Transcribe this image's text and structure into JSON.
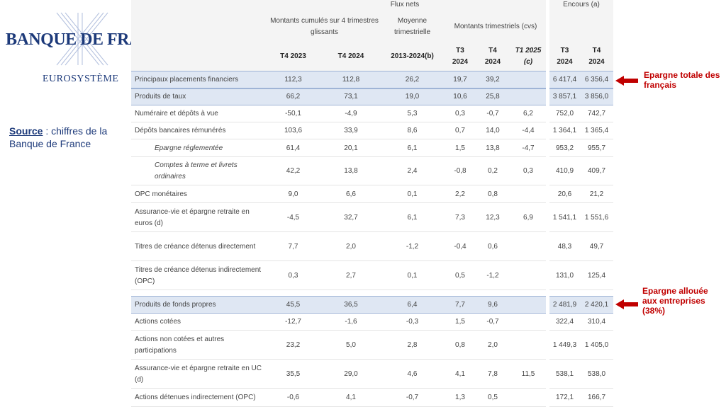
{
  "logo": {
    "name": "BANQUE DE FRANCE",
    "subtitle": "EUROSYSTÈME"
  },
  "source": {
    "label": "Source",
    "text": ": chiffres de la Banque de France"
  },
  "annotations": {
    "total": "Epargne totale des français",
    "entreprises": "Epargne allouée aux entreprises (38%)"
  },
  "table": {
    "header": {
      "flux_nets": "Flux nets",
      "encours": "Encours (a)",
      "groups": [
        "Montants cumulés sur 4 trimestres glissants",
        "Moyenne trimestrielle",
        "Montants trimestriels (cvs)"
      ],
      "columns": [
        [
          "T4 2023"
        ],
        [
          "T4 2024"
        ],
        [
          "2013-2024(b)"
        ],
        [
          "T3",
          "2024"
        ],
        [
          "T4",
          "2024"
        ],
        [
          "T1 2025",
          "(c)"
        ],
        [
          "T3",
          "2024"
        ],
        [
          "T4",
          "2024"
        ]
      ]
    },
    "rows": [
      {
        "label": "Principaux placements financiers",
        "cells": [
          "112,3",
          "112,8",
          "26,2",
          "19,7",
          "39,2",
          null,
          "6 417,4",
          "6 356,4"
        ]
      },
      {
        "label": "Produits de taux",
        "cells": [
          "66,2",
          "73,1",
          "19,0",
          "10,6",
          "25,8",
          null,
          "3 857,1",
          "3 856,0"
        ]
      },
      {
        "label": "Numéraire et dépôts à vue",
        "cells": [
          "-50,1",
          "-4,9",
          "5,3",
          "0,3",
          "-0,7",
          "6,2",
          "752,0",
          "742,7"
        ]
      },
      {
        "label": "Dépôts bancaires rémunérés",
        "cells": [
          "103,6",
          "33,9",
          "8,6",
          "0,7",
          "14,0",
          "-4,4",
          "1 364,1",
          "1 365,4"
        ]
      },
      {
        "label": "Epargne réglementée",
        "cells": [
          "61,4",
          "20,1",
          "6,1",
          "1,5",
          "13,8",
          "-4,7",
          "953,2",
          "955,7"
        ]
      },
      {
        "label": "Comptes à terme et livrets ordinaires",
        "cells": [
          "42,2",
          "13,8",
          "2,4",
          "-0,8",
          "0,2",
          "0,3",
          "410,9",
          "409,7"
        ]
      },
      {
        "label": "OPC monétaires",
        "cells": [
          "9,0",
          "6,6",
          "0,1",
          "2,2",
          "0,8",
          null,
          "20,6",
          "21,2"
        ]
      },
      {
        "label": "Assurance-vie et épargne retraite en euros (d)",
        "cells": [
          "-4,5",
          "32,7",
          "6,1",
          "7,3",
          "12,3",
          "6,9",
          "1 541,1",
          "1 551,6"
        ]
      },
      {
        "label": "Titres de créance détenus directement",
        "cells": [
          "7,7",
          "2,0",
          "-1,2",
          "-0,4",
          "0,6",
          null,
          "48,3",
          "49,7"
        ]
      },
      {
        "label": "Titres de créance détenus indirectement (OPC)",
        "cells": [
          "0,3",
          "2,7",
          "0,1",
          "0,5",
          "-1,2",
          null,
          "131,0",
          "125,4"
        ]
      },
      {
        "label": "Produits de fonds propres",
        "cells": [
          "45,5",
          "36,5",
          "6,4",
          "7,7",
          "9,6",
          null,
          "2 481,9",
          "2 420,1"
        ]
      },
      {
        "label": "Actions cotées",
        "cells": [
          "-12,7",
          "-1,6",
          "-0,3",
          "1,5",
          "-0,7",
          null,
          "322,4",
          "310,4"
        ]
      },
      {
        "label": "Actions non cotées et autres participations",
        "cells": [
          "23,2",
          "5,0",
          "2,8",
          "0,8",
          "2,0",
          null,
          "1 449,3",
          "1 405,0"
        ]
      },
      {
        "label": "Assurance-vie et épargne retraite en UC (d)",
        "cells": [
          "35,5",
          "29,0",
          "4,6",
          "4,1",
          "7,8",
          "11,5",
          "538,1",
          "538,0"
        ]
      },
      {
        "label": "Actions détenues indirectement (OPC)",
        "cells": [
          "-0,6",
          "4,1",
          "-0,7",
          "1,3",
          "0,5",
          null,
          "172,1",
          "166,7"
        ]
      }
    ]
  }
}
